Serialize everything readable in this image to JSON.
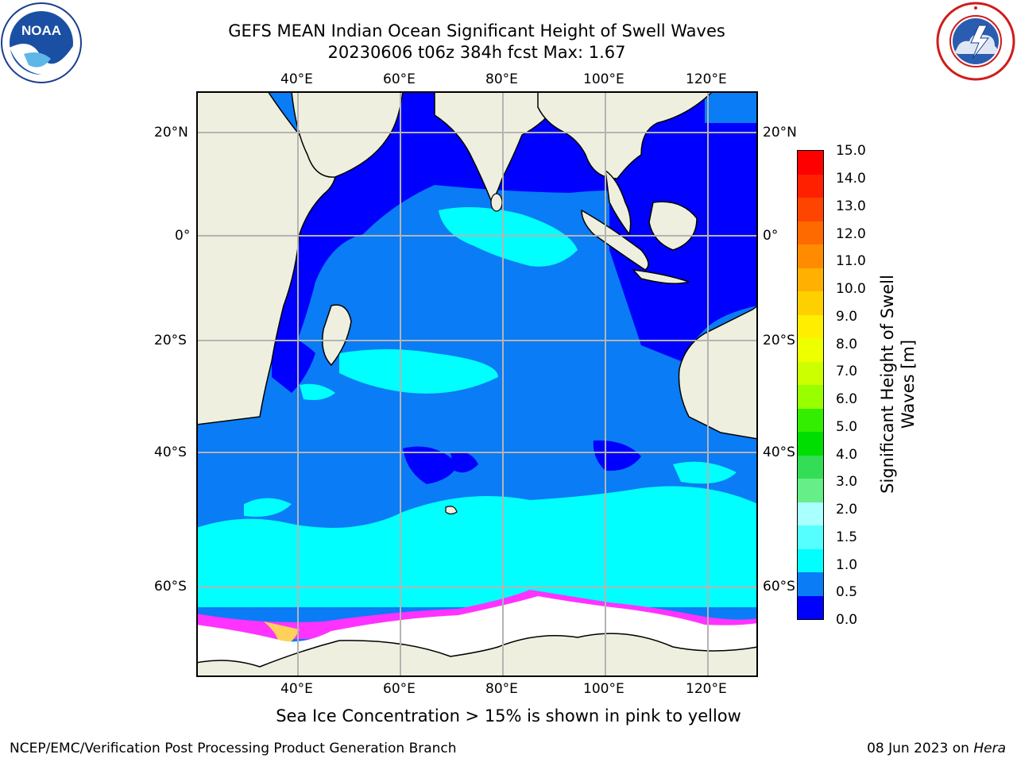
{
  "title": {
    "line1": "GEFS MEAN Indian Ocean Significant Height of Swell Waves",
    "line2": "20230606 t06z 384h fcst   Max: 1.67"
  },
  "logos": {
    "left": {
      "icon": "noaa-logo",
      "text": "NOAA",
      "ring_text": "NATIONAL OCEANIC AND ATMOSPHERIC ADMINISTRATION · U.S. DEPARTMENT OF COMMERCE"
    },
    "right": {
      "icon": "nws-logo",
      "ring_text": "NATIONAL WEATHER SERVICE"
    }
  },
  "map": {
    "lon_labels": [
      "40°E",
      "60°E",
      "80°E",
      "100°E",
      "120°E"
    ],
    "lat_labels": [
      "20°N",
      "0°",
      "20°S",
      "40°S",
      "60°S"
    ],
    "colors": {
      "land": "#efefdf",
      "ocean_low": "#0000ff",
      "ocean_mid": "#0a7cf5",
      "ocean_high": "#00ffff",
      "ice": "#ffffff",
      "ice_edge": "#ff33ff",
      "grid": "#b4b4b4"
    }
  },
  "colorbar": {
    "label_line1": "Significant Height of Swell",
    "label_line2": "Waves [m]",
    "ticks": [
      "15.0",
      "14.0",
      "13.0",
      "12.0",
      "11.0",
      "10.0",
      "9.0",
      "8.0",
      "7.0",
      "6.0",
      "5.0",
      "4.0",
      "3.0",
      "2.0",
      "1.5",
      "1.0",
      "0.5",
      "0.0"
    ],
    "colors_top_to_bottom": [
      "#ff0000",
      "#ff2000",
      "#ff4400",
      "#ff6a00",
      "#ff8c00",
      "#ffb000",
      "#ffd000",
      "#ffee00",
      "#eeff00",
      "#ccff00",
      "#99ff00",
      "#33ee00",
      "#00dd00",
      "#33dd55",
      "#66ee88",
      "#aaffff",
      "#55ffff",
      "#00ffff",
      "#0a7cf5",
      "#0000ff"
    ]
  },
  "note": "Sea Ice Concentration > 15% is shown in pink to yellow",
  "footer": {
    "left": "NCEP/EMC/Verification Post Processing Product Generation Branch",
    "right_prefix": "08 Jun 2023 on ",
    "right_host": "Hera"
  }
}
